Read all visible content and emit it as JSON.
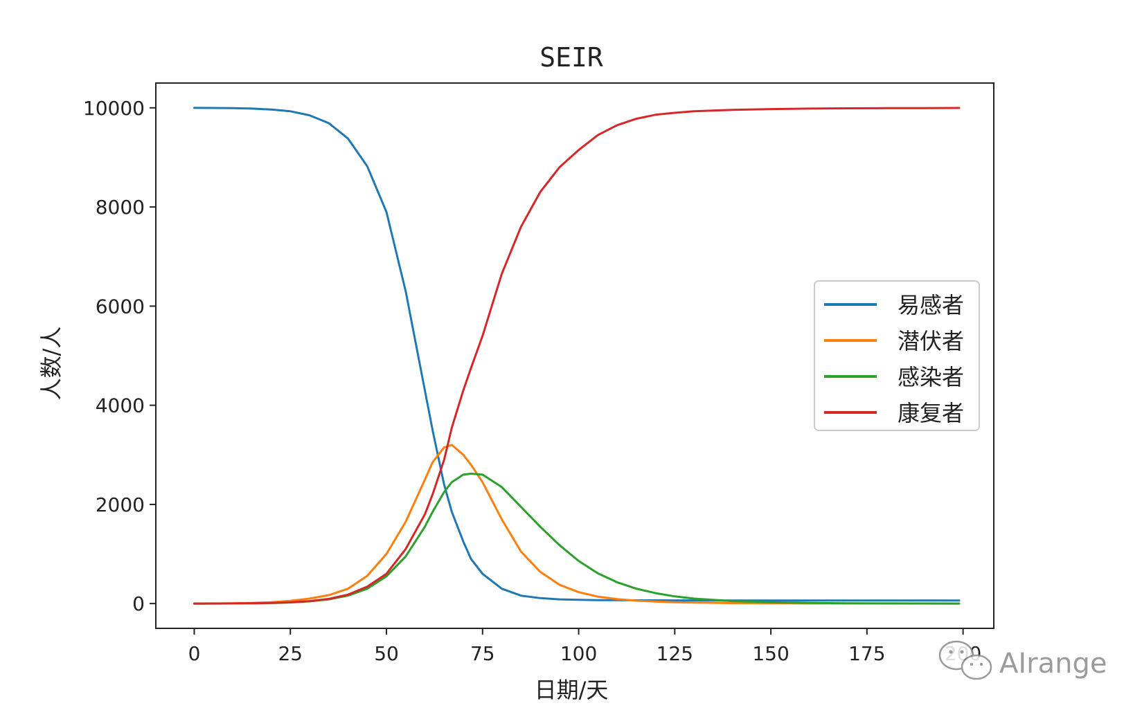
{
  "chart_data": {
    "type": "line",
    "title": "SEIR",
    "xlabel": "日期/天",
    "ylabel": "人数/人",
    "xlim": [
      -10,
      208
    ],
    "ylim": [
      -500,
      10500
    ],
    "x_ticks": [
      0,
      25,
      50,
      75,
      100,
      125,
      150,
      175,
      200
    ],
    "y_ticks": [
      0,
      2000,
      4000,
      6000,
      8000,
      10000
    ],
    "legend_position": "center-right",
    "grid": false,
    "x": [
      0,
      5,
      10,
      15,
      20,
      25,
      30,
      35,
      40,
      45,
      50,
      55,
      60,
      62,
      65,
      67,
      70,
      72,
      75,
      80,
      85,
      90,
      95,
      100,
      105,
      110,
      115,
      120,
      125,
      130,
      140,
      150,
      160,
      170,
      180,
      190,
      199
    ],
    "series": [
      {
        "name": "易感者",
        "color": "#1f77b4",
        "values": [
          9999,
          9997,
          9993,
          9985,
          9965,
          9930,
          9850,
          9690,
          9380,
          8820,
          7900,
          6300,
          4300,
          3500,
          2400,
          1850,
          1250,
          900,
          600,
          300,
          160,
          110,
          85,
          75,
          70,
          68,
          66,
          65,
          64,
          64,
          63,
          63,
          63,
          63,
          63,
          63,
          63
        ]
      },
      {
        "name": "潜伏者",
        "color": "#ff7f0e",
        "values": [
          1,
          3,
          7,
          14,
          28,
          55,
          100,
          170,
          300,
          560,
          1000,
          1650,
          2500,
          2850,
          3150,
          3200,
          3000,
          2800,
          2450,
          1700,
          1050,
          640,
          380,
          230,
          140,
          90,
          58,
          40,
          28,
          20,
          10,
          5,
          3,
          2,
          1,
          1,
          0
        ]
      },
      {
        "name": "感染者",
        "color": "#2ca02c",
        "values": [
          0,
          1,
          2,
          4,
          10,
          22,
          45,
          85,
          160,
          300,
          550,
          950,
          1550,
          1850,
          2250,
          2450,
          2600,
          2620,
          2600,
          2350,
          1950,
          1550,
          1180,
          860,
          610,
          430,
          300,
          210,
          145,
          100,
          50,
          25,
          13,
          7,
          4,
          2,
          1
        ]
      },
      {
        "name": "康复者",
        "color": "#d62728",
        "values": [
          0,
          1,
          3,
          6,
          12,
          25,
          50,
          95,
          180,
          340,
          600,
          1100,
          1800,
          2200,
          2900,
          3550,
          4300,
          4750,
          5400,
          6650,
          7600,
          8300,
          8800,
          9150,
          9450,
          9650,
          9780,
          9860,
          9900,
          9930,
          9960,
          9975,
          9985,
          9990,
          9993,
          9995,
          9997
        ]
      }
    ]
  },
  "watermark": {
    "text": "AIrange",
    "icon": "wechat-icon"
  }
}
